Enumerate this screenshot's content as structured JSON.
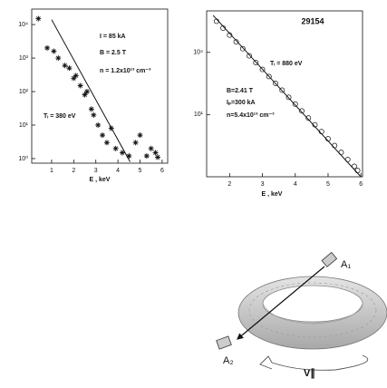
{
  "chart_data": [
    {
      "type": "scatter",
      "log_y": true,
      "x_label": "E , keV",
      "annotations": [
        "I = 85 kA",
        "B = 2.5 T",
        "n = 1.2x10¹³ cm⁻³",
        "Tᵢ = 380 eV"
      ],
      "marker": "asterisk",
      "color": "#111111",
      "points": {
        "x": [
          0.4,
          0.8,
          1.1,
          1.3,
          1.6,
          1.8,
          2.0,
          2.1,
          2.3,
          2.5,
          2.6,
          2.8,
          2.9,
          3.1,
          3.3,
          3.5,
          3.7,
          3.9,
          4.2,
          4.5,
          4.8,
          5.0,
          5.3,
          5.5,
          5.7,
          5.8
        ],
        "values": [
          15000,
          2000,
          1600,
          1000,
          600,
          500,
          250,
          300,
          150,
          80,
          100,
          30,
          20,
          10,
          5,
          3,
          8,
          2,
          1.5,
          1.2,
          3,
          5,
          1.2,
          2,
          1.5,
          1.1
        ]
      },
      "fit": {
        "x": [
          1.0,
          4.55
        ],
        "values": [
          14000,
          0.8
        ]
      },
      "xlim": [
        0.1,
        6.25
      ],
      "xticks": [
        1,
        2,
        3,
        4,
        5,
        6
      ],
      "ylim": [
        0.73,
        29000
      ],
      "yticks": [
        {
          "value": 1,
          "label": "10⁰"
        },
        {
          "value": 10,
          "label": "10¹"
        },
        {
          "value": 100,
          "label": "10²"
        },
        {
          "value": 1000,
          "label": "10³"
        },
        {
          "value": 10000,
          "label": "10⁴"
        }
      ]
    },
    {
      "type": "scatter",
      "log_y": true,
      "title": "29154",
      "x_label": "E , keV",
      "annotations": [
        "Tᵢ = 880 eV",
        "B=2.41 T",
        "Iₚ=300 kA",
        "n=5.4x10¹³ cm⁻³"
      ],
      "marker": "circle",
      "color": "#111111",
      "points": {
        "x": [
          1.6,
          1.8,
          2.0,
          2.2,
          2.4,
          2.6,
          2.8,
          3.0,
          3.2,
          3.4,
          3.6,
          3.8,
          4.0,
          4.2,
          4.4,
          4.6,
          4.8,
          5.0,
          5.2,
          5.4,
          5.6,
          5.8,
          5.9
        ],
        "values": [
          316000,
          148000,
          68000,
          32000,
          15000,
          6800,
          3200,
          1500,
          680,
          320,
          150,
          68,
          32,
          15,
          6.8,
          3.2,
          1.5,
          0.68,
          0.32,
          0.15,
          0.068,
          0.032,
          0.02
        ]
      },
      "fit": {
        "x": [
          1.5,
          6.0
        ],
        "values": [
          600000,
          0.01
        ]
      },
      "xlim": [
        1.3,
        6.05
      ],
      "xticks": [
        2,
        3,
        4,
        5,
        6
      ],
      "ylim": [
        0.01,
        1000000
      ],
      "yticks": [
        {
          "value": 10,
          "label": "10¹"
        },
        {
          "value": 10000,
          "label": "10⁴"
        }
      ]
    }
  ],
  "diagram": {
    "a1": "A₁",
    "a2": "A₂",
    "velocity": "V∥"
  }
}
